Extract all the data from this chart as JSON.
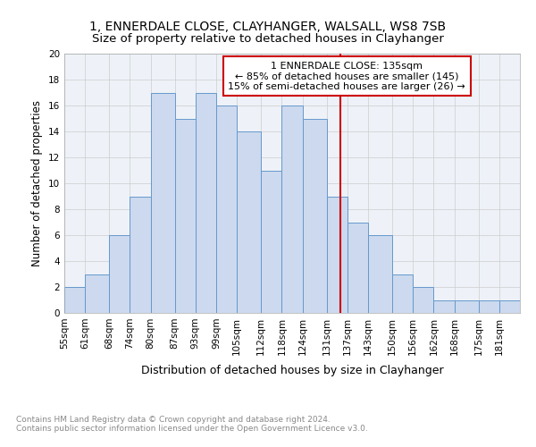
{
  "title1": "1, ENNERDALE CLOSE, CLAYHANGER, WALSALL, WS8 7SB",
  "title2": "Size of property relative to detached houses in Clayhanger",
  "xlabel": "Distribution of detached houses by size in Clayhanger",
  "ylabel": "Number of detached properties",
  "bin_edges": [
    55,
    61,
    68,
    74,
    80,
    87,
    93,
    99,
    105,
    112,
    118,
    124,
    131,
    137,
    143,
    150,
    156,
    162,
    168,
    175,
    181,
    187
  ],
  "bin_labels": [
    "55sqm",
    "61sqm",
    "68sqm",
    "74sqm",
    "80sqm",
    "87sqm",
    "93sqm",
    "99sqm",
    "105sqm",
    "112sqm",
    "118sqm",
    "124sqm",
    "131sqm",
    "137sqm",
    "143sqm",
    "150sqm",
    "156sqm",
    "162sqm",
    "168sqm",
    "175sqm",
    "181sqm"
  ],
  "heights": [
    2,
    3,
    6,
    9,
    17,
    15,
    17,
    16,
    14,
    11,
    16,
    15,
    9,
    7,
    6,
    3,
    2,
    1,
    1,
    1,
    1
  ],
  "bar_color": "#ccd9ee",
  "bar_edge_color": "#6699cc",
  "vline_x": 135,
  "vline_color": "#cc0000",
  "annotation_text": "1 ENNERDALE CLOSE: 135sqm\n← 85% of detached houses are smaller (145)\n15% of semi-detached houses are larger (26) →",
  "annotation_box_color": "#ffffff",
  "annotation_box_edge": "#cc0000",
  "ylim": [
    0,
    20
  ],
  "yticks": [
    0,
    2,
    4,
    6,
    8,
    10,
    12,
    14,
    16,
    18,
    20
  ],
  "grid_color": "#cccccc",
  "bg_color": "#eef2f8",
  "footer": "Contains HM Land Registry data © Crown copyright and database right 2024.\nContains public sector information licensed under the Open Government Licence v3.0.",
  "title_fontsize": 10,
  "subtitle_fontsize": 9.5,
  "xlabel_fontsize": 9,
  "ylabel_fontsize": 8.5,
  "tick_fontsize": 7.5,
  "footer_fontsize": 6.5,
  "annot_fontsize": 8
}
